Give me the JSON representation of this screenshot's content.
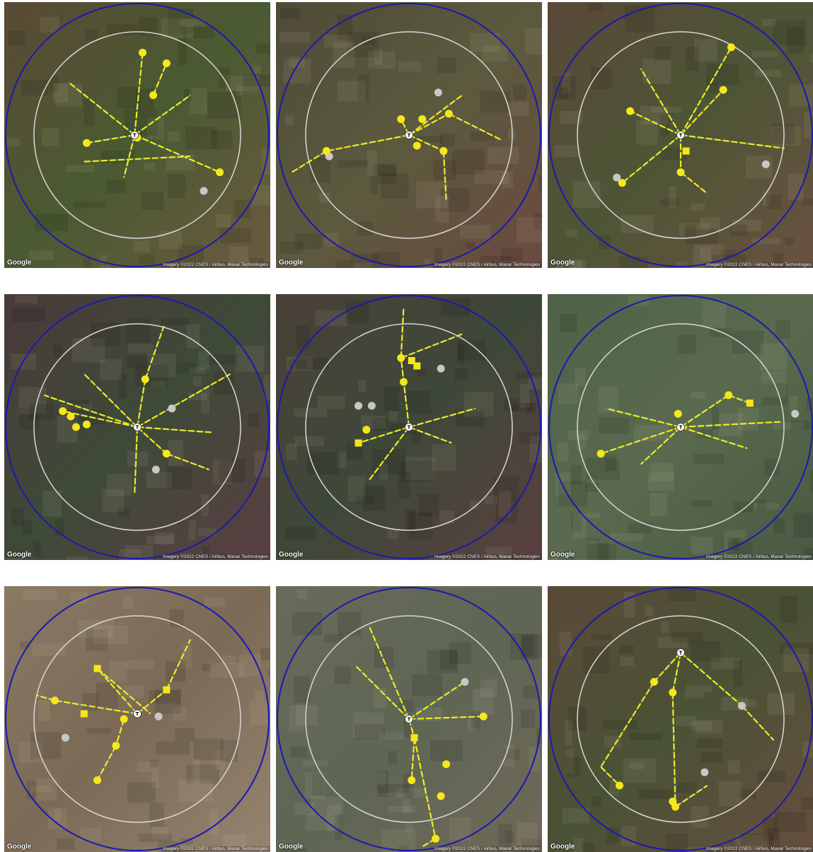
{
  "attribution": "Imagery ©2022 CNES / Airbus, Maxar Technologies",
  "logo": "Google",
  "transformer_label": "T",
  "colors": {
    "outer_ring": "#1a1ab0",
    "inner_ring": "#d8d8d8",
    "line": "#f2ec1b",
    "line_dash": "#4aa3e0",
    "node": "#f5e81a",
    "node_gray": "#c8c8c8",
    "transformer": "#ffffff"
  },
  "panels": [
    {
      "id": "p1",
      "bg": [
        "#5a4a35",
        "#4a5a32",
        "#6b5a40"
      ],
      "tx": 0.49,
      "ty": 0.5,
      "circles": [
        [
          0.52,
          0.19
        ],
        [
          0.61,
          0.23
        ],
        [
          0.56,
          0.35
        ],
        [
          0.31,
          0.53
        ],
        [
          0.5,
          0.51
        ],
        [
          0.81,
          0.64
        ]
      ],
      "squares": [],
      "gray": [
        [
          0.75,
          0.71
        ]
      ],
      "branches": [
        [
          0.49,
          0.5,
          0.52,
          0.19
        ],
        [
          0.49,
          0.5,
          0.31,
          0.53
        ],
        [
          0.49,
          0.5,
          0.81,
          0.64
        ],
        [
          0.56,
          0.35,
          0.61,
          0.23
        ],
        [
          0.49,
          0.5,
          0.24,
          0.3
        ],
        [
          0.49,
          0.5,
          0.7,
          0.35
        ],
        [
          0.49,
          0.5,
          0.45,
          0.66
        ],
        [
          0.3,
          0.6,
          0.7,
          0.58
        ]
      ]
    },
    {
      "id": "p2",
      "bg": [
        "#4f4a38",
        "#5b5a3e",
        "#6b4a40"
      ],
      "tx": 0.5,
      "ty": 0.5,
      "circles": [
        [
          0.47,
          0.44
        ],
        [
          0.55,
          0.44
        ],
        [
          0.65,
          0.42
        ],
        [
          0.19,
          0.56
        ],
        [
          0.53,
          0.54
        ],
        [
          0.63,
          0.56
        ]
      ],
      "squares": [],
      "gray": [
        [
          0.2,
          0.58
        ],
        [
          0.61,
          0.34
        ]
      ],
      "branches": [
        [
          0.5,
          0.5,
          0.19,
          0.56
        ],
        [
          0.5,
          0.5,
          0.47,
          0.44
        ],
        [
          0.5,
          0.5,
          0.65,
          0.42
        ],
        [
          0.5,
          0.5,
          0.63,
          0.56
        ],
        [
          0.63,
          0.56,
          0.64,
          0.75
        ],
        [
          0.19,
          0.56,
          0.06,
          0.64
        ],
        [
          0.5,
          0.5,
          0.7,
          0.35
        ],
        [
          0.65,
          0.42,
          0.85,
          0.52
        ]
      ]
    },
    {
      "id": "p3",
      "bg": [
        "#5a4838",
        "#4d5536",
        "#6a5140"
      ],
      "tx": 0.5,
      "ty": 0.5,
      "circles": [
        [
          0.69,
          0.17
        ],
        [
          0.66,
          0.33
        ],
        [
          0.31,
          0.41
        ],
        [
          0.28,
          0.68
        ],
        [
          0.5,
          0.64
        ]
      ],
      "squares": [
        [
          0.52,
          0.56
        ]
      ],
      "gray": [
        [
          0.26,
          0.66
        ],
        [
          0.82,
          0.61
        ]
      ],
      "branches": [
        [
          0.5,
          0.5,
          0.69,
          0.17
        ],
        [
          0.5,
          0.5,
          0.31,
          0.41
        ],
        [
          0.5,
          0.5,
          0.28,
          0.68
        ],
        [
          0.5,
          0.5,
          0.5,
          0.64
        ],
        [
          0.5,
          0.5,
          0.89,
          0.55
        ],
        [
          0.5,
          0.5,
          0.66,
          0.33
        ],
        [
          0.5,
          0.64,
          0.6,
          0.72
        ],
        [
          0.5,
          0.5,
          0.35,
          0.25
        ]
      ]
    },
    {
      "id": "p4",
      "bg": [
        "#4a3a3a",
        "#3e4a38",
        "#5a3e42"
      ],
      "tx": 0.5,
      "ty": 0.5,
      "circles": [
        [
          0.22,
          0.44
        ],
        [
          0.25,
          0.46
        ],
        [
          0.27,
          0.5
        ],
        [
          0.31,
          0.49
        ],
        [
          0.53,
          0.32
        ],
        [
          0.61,
          0.6
        ]
      ],
      "squares": [],
      "gray": [
        [
          0.63,
          0.43
        ],
        [
          0.57,
          0.66
        ]
      ],
      "branches": [
        [
          0.5,
          0.5,
          0.22,
          0.44
        ],
        [
          0.5,
          0.5,
          0.53,
          0.32
        ],
        [
          0.5,
          0.5,
          0.61,
          0.6
        ],
        [
          0.5,
          0.5,
          0.85,
          0.3
        ],
        [
          0.5,
          0.5,
          0.49,
          0.75
        ],
        [
          0.5,
          0.5,
          0.3,
          0.3
        ],
        [
          0.5,
          0.5,
          0.78,
          0.52
        ],
        [
          0.61,
          0.6,
          0.77,
          0.66
        ],
        [
          0.5,
          0.5,
          0.15,
          0.38
        ],
        [
          0.53,
          0.32,
          0.6,
          0.12
        ]
      ]
    },
    {
      "id": "p5",
      "bg": [
        "#4a4038",
        "#3e4838",
        "#5a4040"
      ],
      "tx": 0.5,
      "ty": 0.5,
      "circles": [
        [
          0.47,
          0.24
        ],
        [
          0.48,
          0.33
        ],
        [
          0.34,
          0.51
        ]
      ],
      "squares": [
        [
          0.51,
          0.25
        ],
        [
          0.53,
          0.27
        ],
        [
          0.31,
          0.56
        ]
      ],
      "gray": [
        [
          0.62,
          0.28
        ],
        [
          0.31,
          0.42
        ],
        [
          0.36,
          0.42
        ]
      ],
      "branches": [
        [
          0.5,
          0.5,
          0.47,
          0.24
        ],
        [
          0.5,
          0.5,
          0.31,
          0.56
        ],
        [
          0.5,
          0.5,
          0.75,
          0.43
        ],
        [
          0.47,
          0.24,
          0.7,
          0.15
        ],
        [
          0.5,
          0.5,
          0.35,
          0.7
        ],
        [
          0.47,
          0.24,
          0.48,
          0.05
        ],
        [
          0.5,
          0.5,
          0.66,
          0.56
        ]
      ]
    },
    {
      "id": "p6",
      "bg": [
        "#4e6248",
        "#5a6a4e",
        "#4a5a44"
      ],
      "tx": 0.5,
      "ty": 0.5,
      "circles": [
        [
          0.49,
          0.45
        ],
        [
          0.68,
          0.38
        ],
        [
          0.2,
          0.6
        ]
      ],
      "squares": [
        [
          0.76,
          0.41
        ]
      ],
      "gray": [
        [
          0.93,
          0.45
        ]
      ],
      "branches": [
        [
          0.5,
          0.5,
          0.2,
          0.6
        ],
        [
          0.5,
          0.5,
          0.68,
          0.38
        ],
        [
          0.5,
          0.5,
          0.88,
          0.48
        ],
        [
          0.5,
          0.5,
          0.22,
          0.43
        ],
        [
          0.5,
          0.5,
          0.35,
          0.64
        ],
        [
          0.68,
          0.38,
          0.76,
          0.41
        ],
        [
          0.5,
          0.5,
          0.75,
          0.58
        ]
      ]
    },
    {
      "id": "p7",
      "bg": [
        "#8a7a64",
        "#7a6a56",
        "#948470"
      ],
      "tx": 0.5,
      "ty": 0.48,
      "circles": [
        [
          0.19,
          0.43
        ],
        [
          0.45,
          0.5
        ],
        [
          0.42,
          0.6
        ],
        [
          0.35,
          0.73
        ]
      ],
      "squares": [
        [
          0.35,
          0.31
        ],
        [
          0.61,
          0.39
        ],
        [
          0.3,
          0.48
        ]
      ],
      "gray": [
        [
          0.58,
          0.49
        ],
        [
          0.23,
          0.57
        ]
      ],
      "branches": [
        [
          0.5,
          0.48,
          0.35,
          0.31
        ],
        [
          0.35,
          0.31,
          0.55,
          0.48
        ],
        [
          0.5,
          0.48,
          0.61,
          0.39
        ],
        [
          0.61,
          0.39,
          0.7,
          0.2
        ],
        [
          0.5,
          0.48,
          0.19,
          0.43
        ],
        [
          0.19,
          0.43,
          0.12,
          0.41
        ],
        [
          0.42,
          0.6,
          0.35,
          0.73
        ],
        [
          0.45,
          0.5,
          0.42,
          0.6
        ]
      ]
    },
    {
      "id": "p8",
      "bg": [
        "#6a6a5a",
        "#5e6654",
        "#706858"
      ],
      "tx": 0.5,
      "ty": 0.5,
      "circles": [
        [
          0.78,
          0.49
        ],
        [
          0.64,
          0.67
        ],
        [
          0.51,
          0.73
        ],
        [
          0.62,
          0.79
        ],
        [
          0.6,
          0.95
        ]
      ],
      "squares": [
        [
          0.52,
          0.57
        ]
      ],
      "gray": [
        [
          0.71,
          0.36
        ]
      ],
      "branches": [
        [
          0.5,
          0.5,
          0.35,
          0.15
        ],
        [
          0.5,
          0.5,
          0.78,
          0.49
        ],
        [
          0.5,
          0.5,
          0.52,
          0.57
        ],
        [
          0.52,
          0.57,
          0.6,
          0.95
        ],
        [
          0.52,
          0.57,
          0.51,
          0.73
        ],
        [
          0.5,
          0.5,
          0.71,
          0.36
        ],
        [
          0.5,
          0.5,
          0.3,
          0.3
        ],
        [
          0.6,
          0.95,
          0.55,
          0.98
        ]
      ]
    },
    {
      "id": "p9",
      "bg": [
        "#5a4a38",
        "#4a5236",
        "#664e3e"
      ],
      "tx": 0.5,
      "ty": 0.25,
      "circles": [
        [
          0.4,
          0.36
        ],
        [
          0.47,
          0.4
        ],
        [
          0.27,
          0.75
        ],
        [
          0.48,
          0.83
        ],
        [
          0.47,
          0.81
        ]
      ],
      "squares": [],
      "gray": [
        [
          0.73,
          0.45
        ],
        [
          0.59,
          0.7
        ]
      ],
      "branches": [
        [
          0.5,
          0.25,
          0.4,
          0.36
        ],
        [
          0.5,
          0.25,
          0.47,
          0.4
        ],
        [
          0.47,
          0.4,
          0.48,
          0.83
        ],
        [
          0.4,
          0.36,
          0.2,
          0.68
        ],
        [
          0.2,
          0.68,
          0.27,
          0.75
        ],
        [
          0.5,
          0.25,
          0.73,
          0.45
        ],
        [
          0.73,
          0.45,
          0.85,
          0.58
        ],
        [
          0.48,
          0.83,
          0.6,
          0.75
        ]
      ]
    }
  ]
}
